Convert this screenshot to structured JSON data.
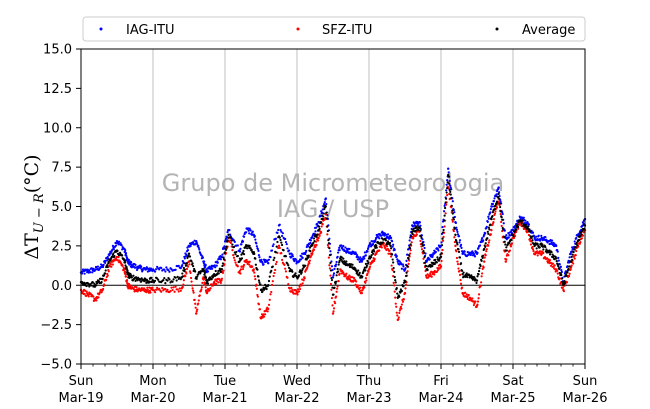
{
  "chart_data": {
    "type": "scatter",
    "title": "",
    "ylabel": "ΔT_{U−R}(°C)",
    "ylim": [
      -5.0,
      15.0
    ],
    "yticks": [
      -5.0,
      -2.5,
      0.0,
      2.5,
      5.0,
      7.5,
      10.0,
      12.5,
      15.0
    ],
    "ytick_labels": [
      "−5.0",
      "−2.5",
      "0.0",
      "2.5",
      "5.0",
      "7.5",
      "10.0",
      "12.5",
      "15.0"
    ],
    "x_unit": "days since Sun Mar-19 00:00",
    "xlim": [
      0,
      7
    ],
    "xticks": [
      {
        "day": "Sun",
        "date": "Mar-19"
      },
      {
        "day": "Mon",
        "date": "Mar-20"
      },
      {
        "day": "Tue",
        "date": "Mar-21"
      },
      {
        "day": "Wed",
        "date": "Mar-22"
      },
      {
        "day": "Thu",
        "date": "Mar-23"
      },
      {
        "day": "Fri",
        "date": "Mar-24"
      },
      {
        "day": "Sat",
        "date": "Mar-25"
      },
      {
        "day": "Sun",
        "date": "Mar-26"
      }
    ],
    "grid": "vertical at day boundaries",
    "zero_line": 0,
    "legend_position": "top (above plot, horizontal)",
    "watermark": [
      "Grupo de Micrometeorologia",
      "IAG / USP"
    ],
    "series": [
      {
        "name": "IAG-ITU",
        "color": "#0000ff",
        "x": [
          0.0,
          0.1,
          0.2,
          0.3,
          0.4,
          0.5,
          0.6,
          0.65,
          0.7,
          0.8,
          0.9,
          1.0,
          1.2,
          1.4,
          1.5,
          1.6,
          1.7,
          1.75,
          1.85,
          1.95,
          2.05,
          2.2,
          2.3,
          2.4,
          2.5,
          2.6,
          2.75,
          2.9,
          3.0,
          3.1,
          3.2,
          3.3,
          3.4,
          3.5,
          3.6,
          3.7,
          3.8,
          3.9,
          4.0,
          4.1,
          4.2,
          4.3,
          4.4,
          4.5,
          4.6,
          4.7,
          4.8,
          4.9,
          5.0,
          5.1,
          5.2,
          5.3,
          5.4,
          5.5,
          5.6,
          5.7,
          5.8,
          5.9,
          6.0,
          6.1,
          6.2,
          6.3,
          6.4,
          6.5,
          6.6,
          6.7,
          6.8,
          6.9,
          7.0
        ],
        "y": [
          0.8,
          0.9,
          1.0,
          1.2,
          2.0,
          2.8,
          2.3,
          1.5,
          1.3,
          1.1,
          1.0,
          1.0,
          1.0,
          1.2,
          2.5,
          2.8,
          1.5,
          0.9,
          1.2,
          1.8,
          3.5,
          2.2,
          3.6,
          3.2,
          1.5,
          1.4,
          3.8,
          2.0,
          1.5,
          2.0,
          3.0,
          4.0,
          5.5,
          0.5,
          2.5,
          2.2,
          2.0,
          1.5,
          2.5,
          3.0,
          3.3,
          3.0,
          1.5,
          1.0,
          3.8,
          4.0,
          1.5,
          2.0,
          2.5,
          7.4,
          4.0,
          2.0,
          2.0,
          2.0,
          3.2,
          5.0,
          6.2,
          3.0,
          3.5,
          4.3,
          4.0,
          3.0,
          3.0,
          2.8,
          2.5,
          0.2,
          2.0,
          3.2,
          4.2
        ]
      },
      {
        "name": "SFZ-ITU",
        "color": "#ff0000",
        "x": [
          0.0,
          0.1,
          0.2,
          0.3,
          0.4,
          0.5,
          0.6,
          0.65,
          0.7,
          0.8,
          0.9,
          1.0,
          1.2,
          1.4,
          1.5,
          1.6,
          1.7,
          1.75,
          1.85,
          1.95,
          2.05,
          2.2,
          2.3,
          2.4,
          2.5,
          2.6,
          2.75,
          2.9,
          3.0,
          3.1,
          3.2,
          3.3,
          3.4,
          3.5,
          3.6,
          3.7,
          3.8,
          3.9,
          4.0,
          4.1,
          4.2,
          4.3,
          4.4,
          4.5,
          4.6,
          4.7,
          4.8,
          4.9,
          5.0,
          5.1,
          5.2,
          5.3,
          5.4,
          5.5,
          5.6,
          5.7,
          5.8,
          5.9,
          6.0,
          6.1,
          6.2,
          6.3,
          6.4,
          6.5,
          6.6,
          6.7,
          6.8,
          6.9,
          7.0
        ],
        "y": [
          -0.3,
          -0.6,
          -0.9,
          -0.3,
          1.2,
          1.8,
          1.0,
          0.0,
          -0.2,
          -0.3,
          -0.3,
          -0.3,
          -0.3,
          -0.2,
          1.5,
          -1.8,
          0.5,
          -0.5,
          0.2,
          0.3,
          3.0,
          0.8,
          1.6,
          1.0,
          -2.1,
          -1.5,
          2.5,
          -0.2,
          -0.5,
          0.5,
          2.0,
          3.0,
          4.5,
          -1.8,
          1.0,
          0.5,
          0.3,
          -0.5,
          1.0,
          2.0,
          2.6,
          2.0,
          -2.2,
          -0.5,
          3.0,
          3.4,
          0.5,
          0.8,
          1.2,
          6.5,
          2.5,
          -0.5,
          -0.8,
          -1.3,
          1.5,
          3.5,
          5.5,
          1.5,
          3.0,
          4.0,
          3.5,
          2.0,
          2.0,
          1.5,
          1.0,
          -0.3,
          1.0,
          2.5,
          3.5
        ]
      },
      {
        "name": "Average",
        "color": "#000000",
        "x": [
          0.0,
          0.1,
          0.2,
          0.3,
          0.4,
          0.5,
          0.6,
          0.65,
          0.7,
          0.8,
          0.9,
          1.0,
          1.2,
          1.4,
          1.5,
          1.6,
          1.7,
          1.75,
          1.85,
          1.95,
          2.05,
          2.2,
          2.3,
          2.4,
          2.5,
          2.6,
          2.75,
          2.9,
          3.0,
          3.1,
          3.2,
          3.3,
          3.4,
          3.5,
          3.6,
          3.7,
          3.8,
          3.9,
          4.0,
          4.1,
          4.2,
          4.3,
          4.4,
          4.5,
          4.6,
          4.7,
          4.8,
          4.9,
          5.0,
          5.1,
          5.2,
          5.3,
          5.4,
          5.5,
          5.6,
          5.7,
          5.8,
          5.9,
          6.0,
          6.1,
          6.2,
          6.3,
          6.4,
          6.5,
          6.6,
          6.7,
          6.8,
          6.9,
          7.0
        ],
        "y": [
          0.2,
          0.1,
          0.0,
          0.4,
          1.6,
          2.2,
          1.6,
          0.7,
          0.5,
          0.4,
          0.3,
          0.3,
          0.3,
          0.5,
          2.0,
          0.5,
          1.0,
          0.2,
          0.7,
          1.0,
          3.2,
          1.5,
          2.5,
          2.1,
          -0.3,
          0.0,
          3.1,
          0.9,
          0.5,
          1.2,
          2.5,
          3.5,
          5.0,
          -0.6,
          1.7,
          1.3,
          1.1,
          0.5,
          1.7,
          2.5,
          2.9,
          2.5,
          -0.8,
          0.2,
          3.4,
          3.7,
          1.0,
          1.4,
          1.8,
          7.0,
          3.2,
          0.7,
          0.5,
          0.3,
          2.3,
          4.2,
          5.8,
          2.2,
          3.2,
          4.1,
          3.7,
          2.5,
          2.5,
          2.1,
          1.7,
          0.0,
          1.5,
          2.8,
          3.8
        ]
      }
    ]
  }
}
